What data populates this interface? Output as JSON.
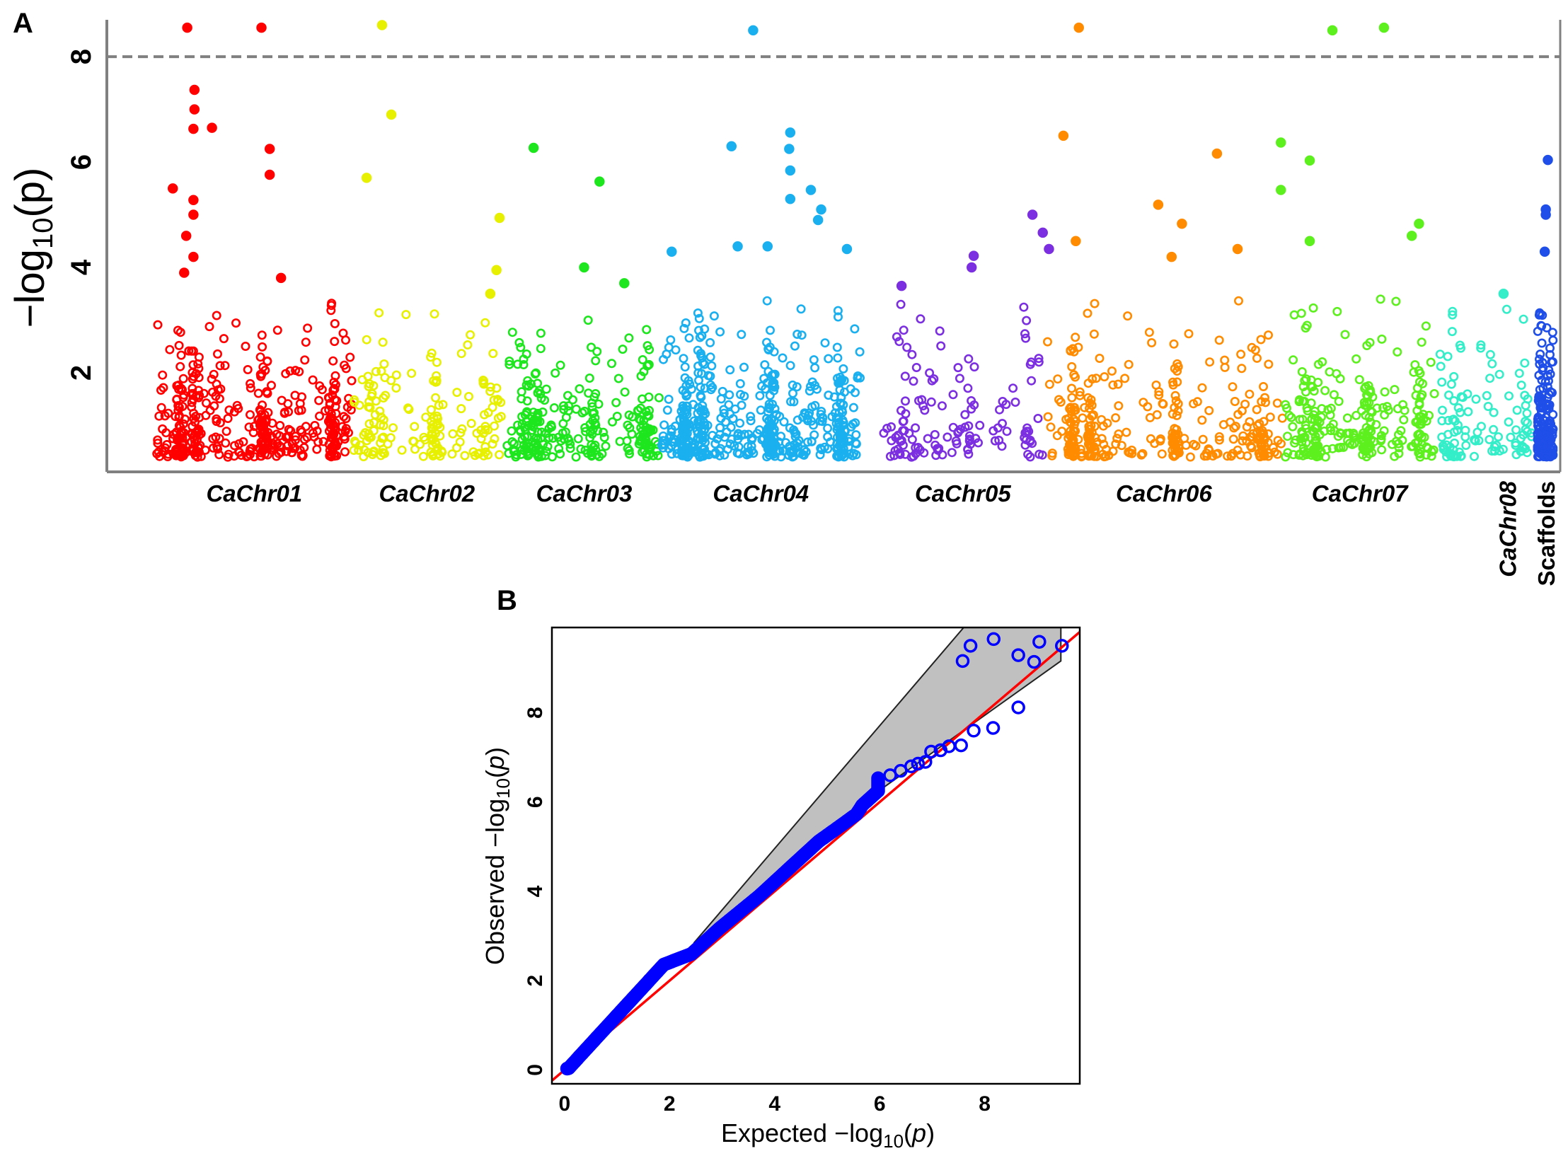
{
  "chart_data": [
    {
      "panel_label": "A",
      "type": "scatter",
      "subtype": "manhattan",
      "ylabel_main": "−log",
      "ylabel_sub": "10",
      "ylabel_arg": "(p)",
      "ylabel_p": "p",
      "xlim": [
        0,
        1410
      ],
      "ylim": [
        0.12,
        8.7
      ],
      "yticks": [
        "2",
        "4",
        "6",
        "8"
      ],
      "ytick_values": [
        2,
        4,
        6,
        8
      ],
      "threshold": 8,
      "threshold_color": "#808080",
      "chromosomes": [
        {
          "label": "CaChr01",
          "range": [
            48,
            238
          ],
          "color": "#ff0000",
          "n_background": 420,
          "hits": [
            [
              78,
              8.55
            ],
            [
              150,
              8.55
            ],
            [
              85,
              7.37
            ],
            [
              85,
              7.0
            ],
            [
              84,
              6.63
            ],
            [
              102,
              6.65
            ],
            [
              158,
              6.25
            ],
            [
              158,
              5.76
            ],
            [
              64,
              5.5
            ],
            [
              84,
              5.28
            ],
            [
              84,
              5.0
            ],
            [
              77,
              4.6
            ],
            [
              84,
              4.2
            ],
            [
              75,
              3.9
            ],
            [
              169,
              3.8
            ]
          ]
        },
        {
          "label": "CaChr02",
          "range": [
            238,
            383
          ],
          "color": "#e6f000",
          "n_background": 170,
          "hits": [
            [
              267,
              8.6
            ],
            [
              276,
              6.9
            ],
            [
              252,
              5.7
            ],
            [
              381,
              4.94
            ],
            [
              378,
              3.95
            ],
            [
              372,
              3.5
            ]
          ]
        },
        {
          "label": "CaChr03",
          "range": [
            388,
            538
          ],
          "color": "#1ee61e",
          "n_background": 260,
          "hits": [
            [
              414,
              6.27
            ],
            [
              478,
              5.63
            ],
            [
              463,
              4.0
            ],
            [
              502,
              3.7
            ]
          ]
        },
        {
          "label": "CaChr04",
          "range": [
            538,
            731
          ],
          "color": "#1ab0f0",
          "n_background": 520,
          "hits": [
            [
              627,
              8.5
            ],
            [
              606,
              6.3
            ],
            [
              663,
              6.56
            ],
            [
              662,
              6.25
            ],
            [
              663,
              5.84
            ],
            [
              683,
              5.47
            ],
            [
              663,
              5.3
            ],
            [
              693,
              5.1
            ],
            [
              690,
              4.9
            ],
            [
              612,
              4.4
            ],
            [
              641,
              4.4
            ],
            [
              718,
              4.35
            ],
            [
              548,
              4.3
            ]
          ]
        },
        {
          "label": "CaChr05",
          "range": [
            753,
            908
          ],
          "color": "#7b2fe0",
          "n_background": 130,
          "hits": [
            [
              898,
              5.0
            ],
            [
              908,
              4.66
            ],
            [
              914,
              4.35
            ],
            [
              841,
              4.22
            ],
            [
              839,
              4.0
            ],
            [
              771,
              3.65
            ]
          ]
        },
        {
          "label": "CaChr06",
          "range": [
            908,
            1143
          ],
          "color": "#ff8c00",
          "n_background": 320,
          "hits": [
            [
              943,
              8.55
            ],
            [
              928,
              6.5
            ],
            [
              1077,
              6.16
            ],
            [
              1020,
              5.19
            ],
            [
              1043,
              4.83
            ],
            [
              940,
              4.5
            ],
            [
              1033,
              4.2
            ],
            [
              1097,
              4.35
            ]
          ]
        },
        {
          "label": "CaChr07",
          "range": [
            1143,
            1288
          ],
          "color": "#5df01e",
          "n_background": 260,
          "hits": [
            [
              1189,
              8.5
            ],
            [
              1239,
              8.55
            ],
            [
              1139,
              6.37
            ],
            [
              1167,
              6.03
            ],
            [
              1139,
              5.47
            ],
            [
              1273,
              4.83
            ],
            [
              1266,
              4.6
            ],
            [
              1167,
              4.5
            ]
          ]
        },
        {
          "label": "CaChr08",
          "range": [
            1293,
            1383
          ],
          "color": "#33eec8",
          "n_background": 110,
          "hits": [
            [
              1355,
              3.5
            ]
          ]
        },
        {
          "label": "Scaffolds",
          "range": [
            1388,
            1403
          ],
          "color": "#1f4fe8",
          "n_background": 170,
          "hits": [
            [
              1398,
              6.04
            ],
            [
              1396,
              5.1
            ],
            [
              1396,
              5.0
            ],
            [
              1395,
              4.3
            ]
          ]
        }
      ]
    },
    {
      "panel_label": "B",
      "type": "scatter",
      "subtype": "qq",
      "xlabel_main": "Expected  −log",
      "ylabel_main": "Observed  −log",
      "label_sub": "10",
      "label_arg_open": "(",
      "label_p": "p",
      "label_arg_close": ")",
      "xlim": [
        -0.24,
        9.81
      ],
      "ylim": [
        -0.31,
        9.91
      ],
      "xticks": [
        "0",
        "2",
        "4",
        "6",
        "8"
      ],
      "xtick_values": [
        0,
        2,
        4,
        6,
        8
      ],
      "yticks": [
        "0",
        "2",
        "4",
        "6",
        "8"
      ],
      "ytick_values": [
        0,
        2,
        4,
        6,
        8
      ],
      "point_color": "#0000ff",
      "line_color": "#ff0000",
      "band_color": "#c0c0c0",
      "confidence_band": [
        [
          2.46,
          2.84
        ],
        [
          7.6,
          9.91
        ],
        [
          9.45,
          9.91
        ],
        [
          9.45,
          9.16
        ],
        [
          6.09,
          6.34
        ],
        [
          4.2,
          4.35
        ]
      ],
      "curve": [
        [
          0.05,
          0.03
        ],
        [
          0.08,
          0.04
        ],
        [
          0.68,
          0.81
        ],
        [
          1.89,
          2.36
        ],
        [
          2.42,
          2.6
        ],
        [
          2.95,
          3.17
        ],
        [
          3.71,
          3.9
        ],
        [
          4.31,
          4.55
        ],
        [
          4.84,
          5.12
        ],
        [
          5.22,
          5.44
        ],
        [
          5.56,
          5.73
        ],
        [
          5.67,
          5.93
        ],
        [
          5.97,
          6.25
        ],
        [
          5.97,
          6.58
        ]
      ],
      "points": [
        [
          6.2,
          6.6
        ],
        [
          6.4,
          6.7
        ],
        [
          6.6,
          6.8
        ],
        [
          6.73,
          6.86
        ],
        [
          6.87,
          6.9
        ],
        [
          6.98,
          7.13
        ],
        [
          7.16,
          7.16
        ],
        [
          7.32,
          7.25
        ],
        [
          7.55,
          7.27
        ],
        [
          7.79,
          7.6
        ],
        [
          8.16,
          7.66
        ],
        [
          8.64,
          8.12
        ],
        [
          7.58,
          9.16
        ],
        [
          7.73,
          9.5
        ],
        [
          8.17,
          9.65
        ],
        [
          8.64,
          9.29
        ],
        [
          9.04,
          9.59
        ],
        [
          8.94,
          9.14
        ],
        [
          9.47,
          9.5
        ]
      ]
    }
  ]
}
